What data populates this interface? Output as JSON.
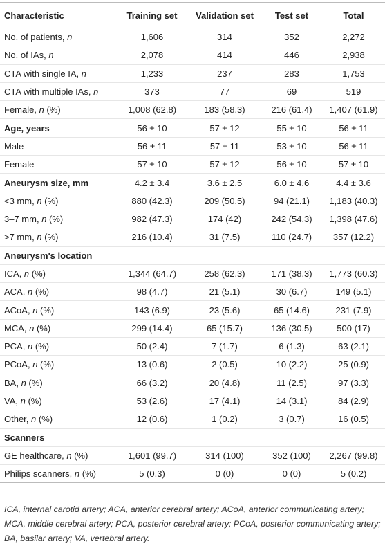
{
  "table": {
    "header": [
      "Characteristic",
      "Training set",
      "Validation set",
      "Test set",
      "Total"
    ],
    "rows": [
      {
        "label": [
          "No. of patients, ",
          "n"
        ],
        "cells": [
          "1,606",
          "314",
          "352",
          "2,272"
        ]
      },
      {
        "label": [
          "No. of IAs, ",
          "n"
        ],
        "cells": [
          "2,078",
          "414",
          "446",
          "2,938"
        ]
      },
      {
        "label": [
          "CTA with single IA, ",
          "n"
        ],
        "cells": [
          "1,233",
          "237",
          "283",
          "1,753"
        ]
      },
      {
        "label": [
          "CTA with multiple IAs, ",
          "n"
        ],
        "cells": [
          "373",
          "77",
          "69",
          "519"
        ]
      },
      {
        "label": [
          "Female, ",
          "n",
          " (%)"
        ],
        "cells": [
          "1,008 (62.8)",
          "183 (58.3)",
          "216 (61.4)",
          "1,407 (61.9)"
        ]
      },
      {
        "label": [
          "Age, years"
        ],
        "bold": true,
        "cells": [
          "56 ± 10",
          "57 ± 12",
          "55 ± 10",
          "56 ± 11"
        ]
      },
      {
        "label": [
          "Male"
        ],
        "cells": [
          "56 ± 11",
          "57 ± 11",
          "53 ± 10",
          "56 ± 11"
        ]
      },
      {
        "label": [
          "Female"
        ],
        "cells": [
          "57 ± 10",
          "57 ± 12",
          "56 ± 10",
          "57 ± 10"
        ]
      },
      {
        "label": [
          "Aneurysm size, mm"
        ],
        "bold": true,
        "cells": [
          "4.2 ± 3.4",
          "3.6 ± 2.5",
          "6.0 ± 4.6",
          "4.4 ± 3.6"
        ]
      },
      {
        "label": [
          "<3 mm, ",
          "n",
          " (%)"
        ],
        "cells": [
          "880 (42.3)",
          "209 (50.5)",
          "94 (21.1)",
          "1,183 (40.3)"
        ]
      },
      {
        "label": [
          "3–7 mm, ",
          "n",
          " (%)"
        ],
        "cells": [
          "982 (47.3)",
          "174 (42)",
          "242 (54.3)",
          "1,398 (47.6)"
        ]
      },
      {
        "label": [
          ">7 mm, ",
          "n",
          " (%)"
        ],
        "cells": [
          "216 (10.4)",
          "31 (7.5)",
          "110 (24.7)",
          "357 (12.2)"
        ]
      },
      {
        "label": [
          "Aneurysm's location"
        ],
        "bold": true
      },
      {
        "label": [
          "ICA, ",
          "n",
          " (%)"
        ],
        "cells": [
          "1,344 (64.7)",
          "258 (62.3)",
          "171 (38.3)",
          "1,773 (60.3)"
        ]
      },
      {
        "label": [
          "ACA, ",
          "n",
          " (%)"
        ],
        "cells": [
          "98 (4.7)",
          "21 (5.1)",
          "30 (6.7)",
          "149 (5.1)"
        ]
      },
      {
        "label": [
          "ACoA, ",
          "n",
          " (%)"
        ],
        "cells": [
          "143 (6.9)",
          "23 (5.6)",
          "65 (14.6)",
          "231 (7.9)"
        ]
      },
      {
        "label": [
          "MCA, ",
          "n",
          " (%)"
        ],
        "cells": [
          "299 (14.4)",
          "65 (15.7)",
          "136 (30.5)",
          "500 (17)"
        ]
      },
      {
        "label": [
          "PCA, ",
          "n",
          " (%)"
        ],
        "cells": [
          "50 (2.4)",
          "7 (1.7)",
          "6 (1.3)",
          "63 (2.1)"
        ]
      },
      {
        "label": [
          "PCoA, ",
          "n",
          " (%)"
        ],
        "cells": [
          "13 (0.6)",
          "2 (0.5)",
          "10 (2.2)",
          "25 (0.9)"
        ]
      },
      {
        "label": [
          "BA, ",
          "n",
          " (%)"
        ],
        "cells": [
          "66 (3.2)",
          "20 (4.8)",
          "11 (2.5)",
          "97 (3.3)"
        ]
      },
      {
        "label": [
          "VA, ",
          "n",
          " (%)"
        ],
        "cells": [
          "53 (2.6)",
          "17 (4.1)",
          "14 (3.1)",
          "84 (2.9)"
        ]
      },
      {
        "label": [
          "Other, ",
          "n",
          " (%)"
        ],
        "cells": [
          "12 (0.6)",
          "1 (0.2)",
          "3 (0.7)",
          "16 (0.5)"
        ]
      },
      {
        "label": [
          "Scanners"
        ],
        "bold": true
      },
      {
        "label": [
          "GE healthcare, ",
          "n",
          " (%)"
        ],
        "cells": [
          "1,601 (99.7)",
          "314 (100)",
          "352 (100)",
          "2,267 (99.8)"
        ]
      },
      {
        "label": [
          "Philips scanners, ",
          "n",
          " (%)"
        ],
        "cells": [
          "5 (0.3)",
          "0 (0)",
          "0 (0)",
          "5 (0.2)"
        ]
      }
    ]
  },
  "footnote": "ICA, internal carotid artery; ACA, anterior cerebral artery; ACoA, anterior communicating artery; MCA, middle cerebral artery; PCA, posterior cerebral artery; PCoA, posterior communicating artery; BA, basilar artery; VA, vertebral artery."
}
